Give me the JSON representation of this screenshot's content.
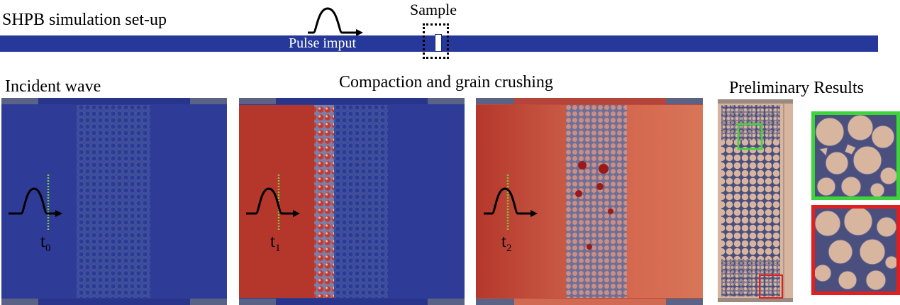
{
  "header": {
    "title": "SHPB simulation set-up",
    "sample_label": "Sample",
    "pulse_label": "Pulse imput"
  },
  "sections": {
    "incident": "Incident wave",
    "compaction": "Compaction and grain crushing",
    "preliminary": "Preliminary Results"
  },
  "panels": [
    {
      "time_symbol": "t",
      "time_index": "0"
    },
    {
      "time_symbol": "t",
      "time_index": "1"
    },
    {
      "time_symbol": "t",
      "time_index": "2"
    }
  ],
  "colors": {
    "bar_blue": "#26389a",
    "field_blue": "#2e3c98",
    "field_red": "#b5372b",
    "field_orange": "#d4684e",
    "grain_tan": "#d7b59f",
    "matrix_navy": "#4a4f7e",
    "zoom_green": "#3ed53a",
    "zoom_red": "#e21f1f",
    "wavefront_green": "#7fc73a"
  }
}
